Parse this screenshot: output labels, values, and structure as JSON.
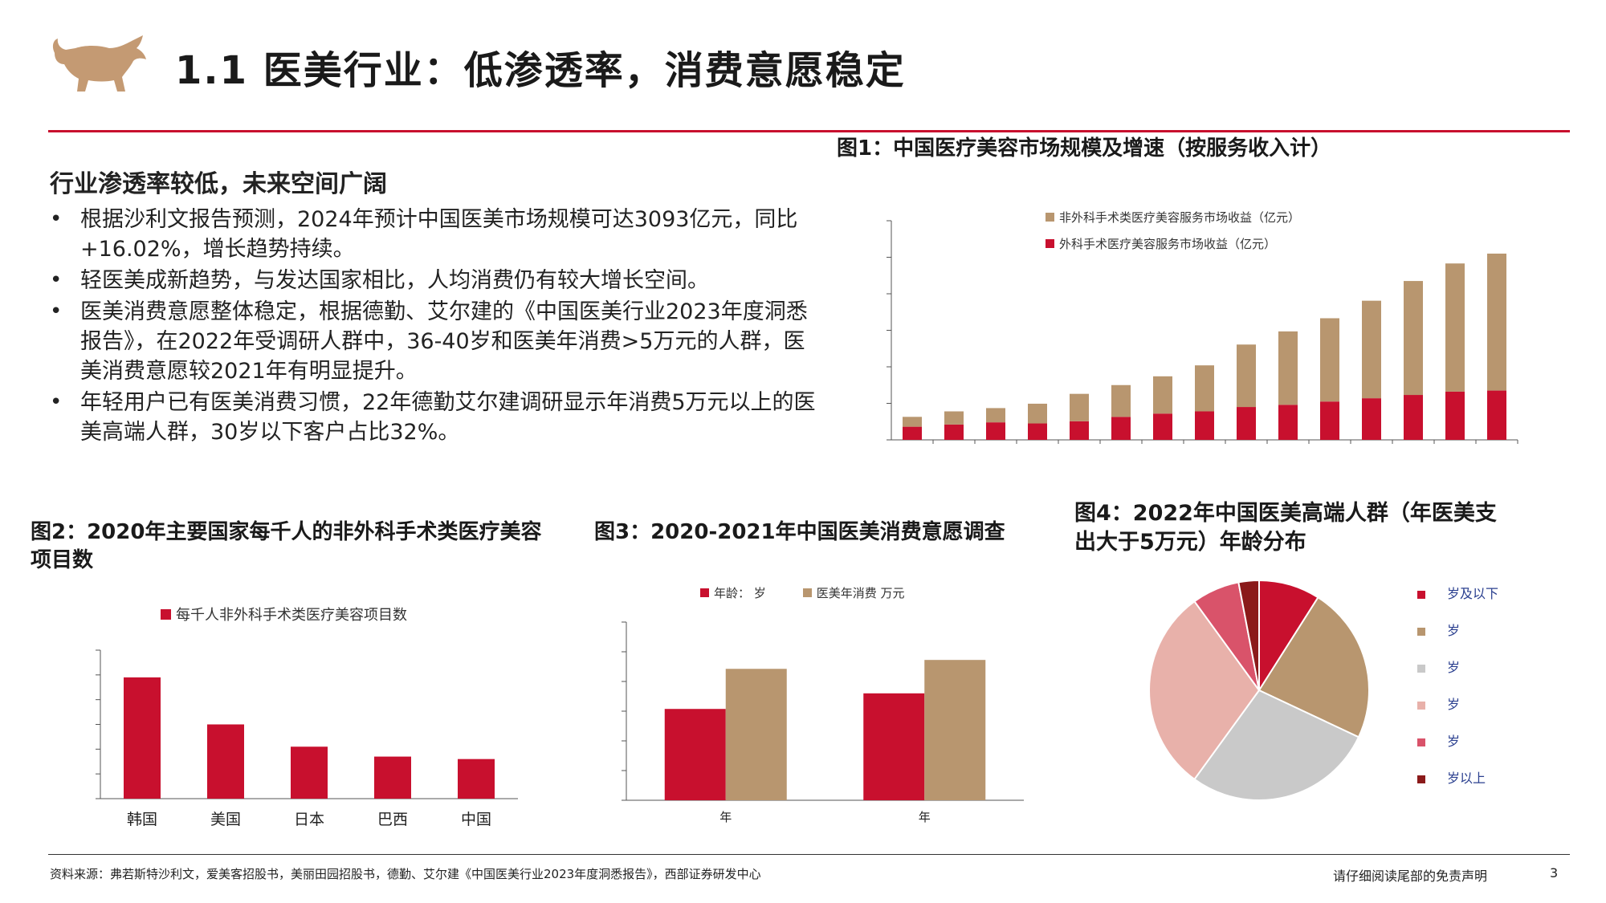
{
  "page": {
    "title": "1.1 医美行业：低渗透率，消费意愿稳定",
    "section_heading": "行业渗透率较低，未来空间广阔",
    "bullets": [
      "根据沙利文报告预测，2024年预计中国医美市场规模可达3093亿元，同比+16.02%，增长趋势持续。",
      "轻医美成新趋势，与发达国家相比，人均消费仍有较大增长空间。",
      "医美消费意愿整体稳定，根据德勤、艾尔建的《中国医美行业2023年度洞悉报告》，在2022年受调研人群中，36-40岁和医美年消费>5万元的人群，医美消费意愿较2021年有明显提升。",
      "年轻用户已有医美消费习惯，22年德勤艾尔建调研显示年消费5万元以上的医美高端人群，30岁以下客户占比32%。"
    ],
    "footer_source": "资料来源：弗若斯特沙利文，爱美客招股书，美丽田园招股书，德勤、艾尔建《中国医美行业2023年度洞悉报告》，西部证券研发中心",
    "footer_disclaimer": "请仔细阅读尾部的免责声明",
    "page_number": "3",
    "colors": {
      "accent": "#c8102e",
      "tan": "#b8966f",
      "gray": "#c9c9c9",
      "pink": "#e8b1aa",
      "rose": "#d9536a",
      "darkred": "#8b1a1a"
    },
    "logo_icon": "bull-icon"
  },
  "chart_data": [
    {
      "id": "fig1",
      "type": "bar",
      "stacked": true,
      "title": "图1：中国医疗美容市场规模及增速（按服务收入计）",
      "series": [
        {
          "name": "非外科手术类医疗美容服务市场收益（亿元）",
          "values": [
            9,
            12,
            13,
            18,
            25,
            29,
            34,
            42,
            57,
            67,
            76,
            89,
            104,
            117,
            125
          ]
        },
        {
          "name": "外科手术医疗美容服务市场收益（亿元）",
          "values": [
            12,
            14,
            16,
            15,
            17,
            21,
            24,
            26,
            30,
            32,
            35,
            38,
            41,
            44,
            45
          ]
        }
      ],
      "ylim": [
        0,
        200
      ],
      "grid": false,
      "legend": "top-left"
    },
    {
      "id": "fig2",
      "type": "bar",
      "title": "图2：2020年主要国家每千人的非外科手术类医疗美容项目数",
      "categories": [
        "韩国",
        "美国",
        "日本",
        "巴西",
        "中国"
      ],
      "series": [
        {
          "name": "每千人非外科手术类医疗美容项目数",
          "values": [
            49,
            30,
            21,
            17,
            16
          ]
        }
      ],
      "ylim": [
        0,
        60
      ],
      "grid": false,
      "legend": "top"
    },
    {
      "id": "fig3",
      "type": "bar",
      "title": "图3：2020-2021年中国医美消费意愿调查",
      "categories": [
        "年",
        "年"
      ],
      "series": [
        {
          "name": "年龄：  岁",
          "values": [
            41,
            48
          ]
        },
        {
          "name": "医美年消费  万元",
          "values": [
            59,
            63
          ]
        }
      ],
      "ylim": [
        0,
        80
      ],
      "grid": false,
      "legend": "top"
    },
    {
      "id": "fig4",
      "type": "pie",
      "title": "图4：2022年中国医美高端人群（年医美支出大于5万元）年龄分布",
      "categories": [
        "岁及以下",
        "岁",
        "岁",
        "岁",
        "岁",
        "岁以上"
      ],
      "values": [
        9,
        23,
        28,
        30,
        7,
        3
      ],
      "legend": "right"
    }
  ]
}
